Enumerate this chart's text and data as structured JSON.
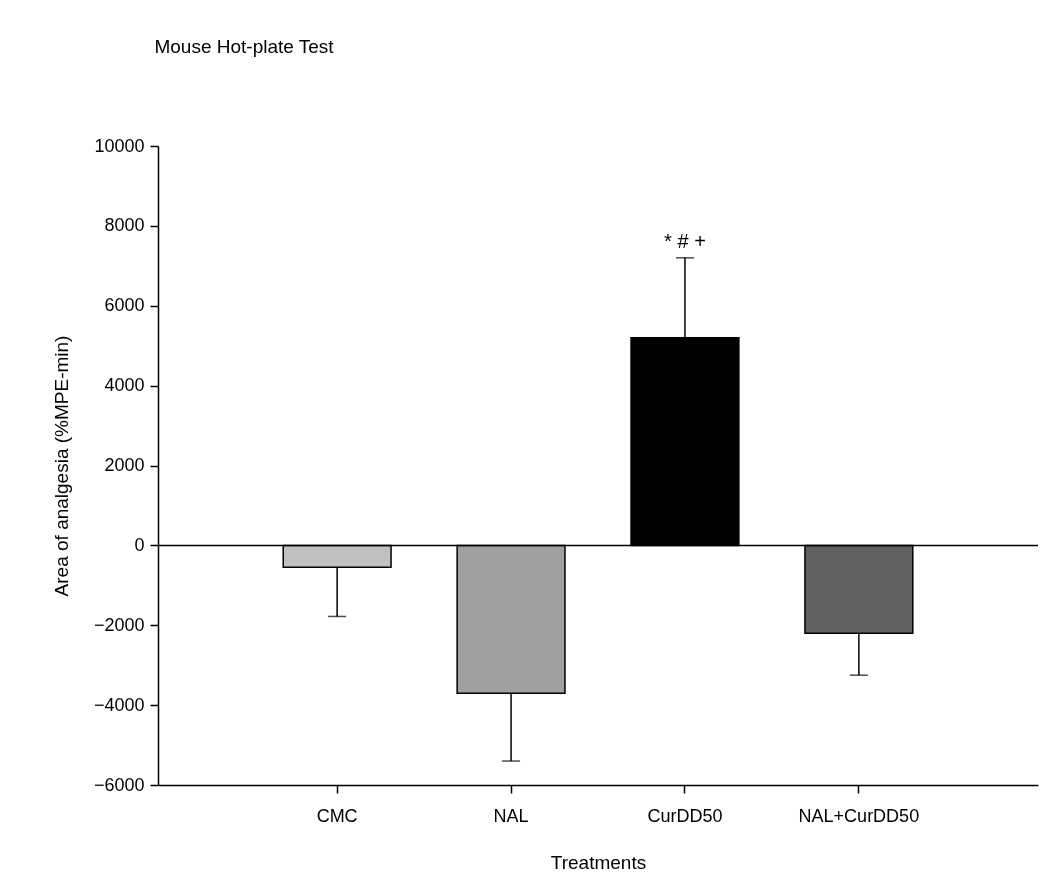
{
  "chart_data": {
    "type": "bar",
    "title": "Mouse Hot-plate Test",
    "xlabel": "Treatments",
    "ylabel": "Area of analgesia (%MPE-min)",
    "categories": [
      "CMC",
      "NAL",
      "CurDD50",
      "NAL+CurDD50"
    ],
    "values": [
      -550,
      -3700,
      5200,
      -2200
    ],
    "colors": [
      "#c0c0c0",
      "#a0a0a0",
      "#000000",
      "#606060"
    ],
    "errors": [
      [
        -1780,
        -550
      ],
      [
        -5400,
        -3700
      ],
      [
        5200,
        7200
      ],
      [
        -3250,
        -2200
      ]
    ],
    "ylim": [
      -6000,
      10000
    ],
    "yticks": [
      -6000,
      -4000,
      -2000,
      0,
      2000,
      4000,
      6000,
      8000,
      10000
    ],
    "ref_lines": [
      {
        "axis": "y",
        "value": 0
      }
    ],
    "annotations": [
      {
        "text": "* # +",
        "x": "CurDD50",
        "y": 7200
      }
    ],
    "grid": false
  }
}
